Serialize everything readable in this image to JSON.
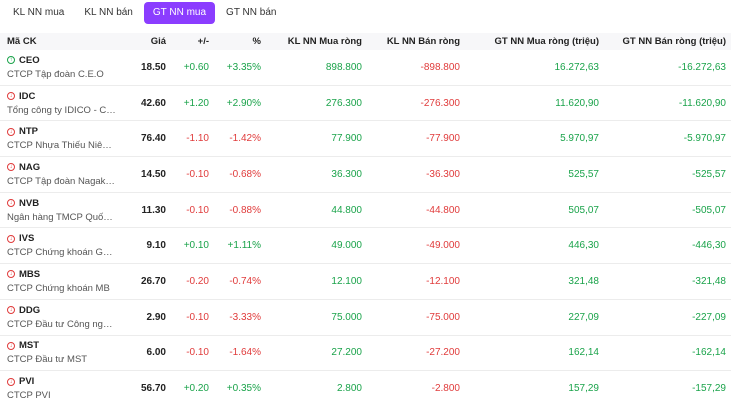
{
  "tabs": [
    {
      "label": "KL NN mua",
      "active": false
    },
    {
      "label": "KL NN bán",
      "active": false
    },
    {
      "label": "GT NN mua",
      "active": true
    },
    {
      "label": "GT NN bán",
      "active": false
    }
  ],
  "header": {
    "code": "Mã CK",
    "price": "Giá",
    "change": "+/-",
    "percent": "%",
    "kl_mua": "KL NN Mua ròng",
    "kl_ban": "KL NN Bán ròng",
    "gt_mua": "GT NN Mua ròng (triệu)",
    "gt_ban": "GT NN Bán ròng (triệu)"
  },
  "colors": {
    "accent": "#8b3dff",
    "up": "#1aa34a",
    "down": "#e03b3b"
  },
  "rows": [
    {
      "code": "CEO",
      "company": "CTCP Tập đoàn C.E.O",
      "price": "18.50",
      "change": "+0.60",
      "percent": "+3.35%",
      "kl_mua": "898.800",
      "kl_ban": "-898.800",
      "gt_mua": "16.272,63",
      "gt_ban": "-16.272,63",
      "trend": "up"
    },
    {
      "code": "IDC",
      "company": "Tổng công ty IDICO - CTCP",
      "price": "42.60",
      "change": "+1.20",
      "percent": "+2.90%",
      "kl_mua": "276.300",
      "kl_ban": "-276.300",
      "gt_mua": "11.620,90",
      "gt_ban": "-11.620,90",
      "trend": "down"
    },
    {
      "code": "NTP",
      "company": "CTCP Nhựa Thiếu Niên Tiề...",
      "price": "76.40",
      "change": "-1.10",
      "percent": "-1.42%",
      "kl_mua": "77.900",
      "kl_ban": "-77.900",
      "gt_mua": "5.970,97",
      "gt_ban": "-5.970,97",
      "trend": "down"
    },
    {
      "code": "NAG",
      "company": "CTCP Tập đoàn Nagakawa",
      "price": "14.50",
      "change": "-0.10",
      "percent": "-0.68%",
      "kl_mua": "36.300",
      "kl_ban": "-36.300",
      "gt_mua": "525,57",
      "gt_ban": "-525,57",
      "trend": "down"
    },
    {
      "code": "NVB",
      "company": "Ngân hàng TMCP Quốc Dân",
      "price": "11.30",
      "change": "-0.10",
      "percent": "-0.88%",
      "kl_mua": "44.800",
      "kl_ban": "-44.800",
      "gt_mua": "505,07",
      "gt_ban": "-505,07",
      "trend": "down"
    },
    {
      "code": "IVS",
      "company": "CTCP Chứng khoán Guotai ...",
      "price": "9.10",
      "change": "+0.10",
      "percent": "+1.11%",
      "kl_mua": "49.000",
      "kl_ban": "-49.000",
      "gt_mua": "446,30",
      "gt_ban": "-446,30",
      "trend": "down"
    },
    {
      "code": "MBS",
      "company": "CTCP Chứng khoán MB",
      "price": "26.70",
      "change": "-0.20",
      "percent": "-0.74%",
      "kl_mua": "12.100",
      "kl_ban": "-12.100",
      "gt_mua": "321,48",
      "gt_ban": "-321,48",
      "trend": "down"
    },
    {
      "code": "DDG",
      "company": "CTCP Đầu tư Công nghiệp ...",
      "price": "2.90",
      "change": "-0.10",
      "percent": "-3.33%",
      "kl_mua": "75.000",
      "kl_ban": "-75.000",
      "gt_mua": "227,09",
      "gt_ban": "-227,09",
      "trend": "down"
    },
    {
      "code": "MST",
      "company": "CTCP Đầu tư MST",
      "price": "6.00",
      "change": "-0.10",
      "percent": "-1.64%",
      "kl_mua": "27.200",
      "kl_ban": "-27.200",
      "gt_mua": "162,14",
      "gt_ban": "-162,14",
      "trend": "down"
    },
    {
      "code": "PVI",
      "company": "CTCP PVI",
      "price": "56.70",
      "change": "+0.20",
      "percent": "+0.35%",
      "kl_mua": "2.800",
      "kl_ban": "-2.800",
      "gt_mua": "157,29",
      "gt_ban": "-157,29",
      "trend": "down"
    }
  ]
}
